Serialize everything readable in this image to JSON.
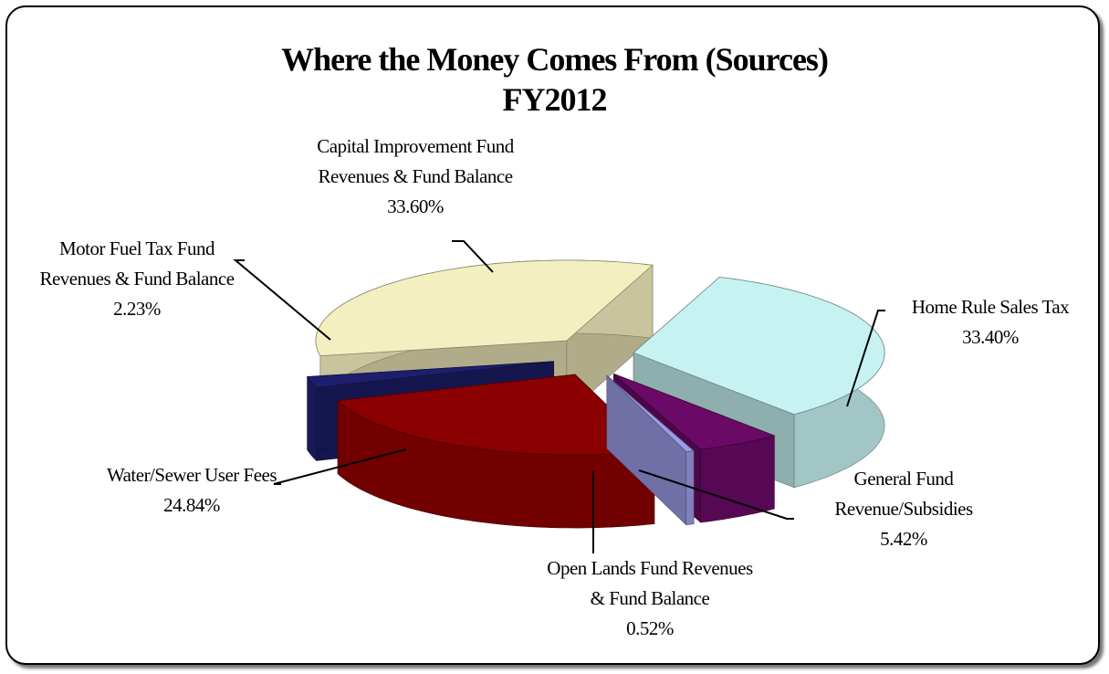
{
  "chart_data": {
    "type": "pie",
    "title": "Where the Money Comes From (Sources)",
    "subtitle": "FY2012",
    "categories": [
      "Home Rule Sales Tax",
      "General Fund Revenue/Subsidies",
      "Open Lands Fund Revenues & Fund Balance",
      "Water/Sewer User Fees",
      "Motor Fuel Tax Fund Revenues & Fund Balance",
      "Capital Improvement Fund Revenues & Fund Balance"
    ],
    "values": [
      33.4,
      5.42,
      0.52,
      24.84,
      2.23,
      33.6
    ],
    "value_labels": [
      "33.40%",
      "5.42%",
      "0.52%",
      "24.84%",
      "2.23%",
      "33.60%"
    ],
    "colors": [
      "#c6f2f2",
      "#6a0a66",
      "#9c9ce6",
      "#8b0000",
      "#1e1e6e",
      "#f4efc0"
    ]
  }
}
